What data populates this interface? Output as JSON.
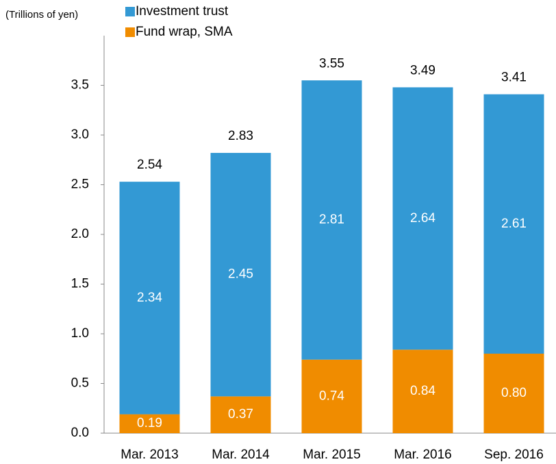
{
  "chart_data": {
    "type": "stacked_bar",
    "y_axis_label": "(Trillions of yen)",
    "categories": [
      "Mar. 2013",
      "Mar. 2014",
      "Mar. 2015",
      "Mar. 2016",
      "Sep. 2016"
    ],
    "series": [
      {
        "name": "Fund wrap, SMA",
        "color": "#f08c00",
        "values": [
          0.19,
          0.37,
          0.74,
          0.84,
          0.8
        ],
        "value_labels": [
          "0.19",
          "0.37",
          "0.74",
          "0.84",
          "0.80"
        ]
      },
      {
        "name": "Investment trust",
        "color": "#3399d4",
        "values": [
          2.34,
          2.45,
          2.81,
          2.64,
          2.61
        ]
      }
    ],
    "totals": [
      2.54,
      2.83,
      3.55,
      3.49,
      3.41
    ],
    "ylim": [
      0,
      4.0
    ],
    "yticks": [
      {
        "value": 0,
        "label": "0.0"
      },
      0.5,
      {
        "value": 1,
        "label": "1.0"
      },
      1.5,
      {
        "value": 2,
        "label": "2.0"
      },
      2.5,
      {
        "value": 3,
        "label": "3.0"
      },
      3.5
    ],
    "grid": false
  }
}
